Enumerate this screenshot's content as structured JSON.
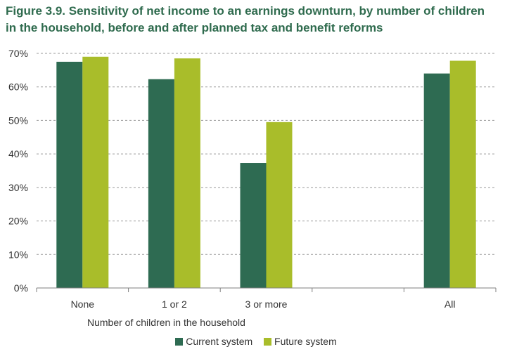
{
  "chart_data": {
    "type": "bar",
    "title_line1": "Figure 3.9. Sensitivity of net income to an earnings downturn, by number of children",
    "title_line2": "in the household, before and after planned tax and benefit reforms",
    "xlabel": "Number of children in the household",
    "ylabel": "",
    "ylim": [
      0,
      70
    ],
    "yticks": [
      "0%",
      "10%",
      "20%",
      "30%",
      "40%",
      "50%",
      "60%",
      "70%"
    ],
    "grid": "horizontal dashed",
    "legend_position": "bottom",
    "categories": [
      "None",
      "1 or 2",
      "3 or more",
      "All"
    ],
    "series": [
      {
        "name": "Current system",
        "color": "#2e6b52",
        "values": [
          67.5,
          62.3,
          37.3,
          64.0
        ]
      },
      {
        "name": "Future system",
        "color": "#a9bd2a",
        "values": [
          69.0,
          68.5,
          49.5,
          67.8
        ]
      }
    ]
  }
}
